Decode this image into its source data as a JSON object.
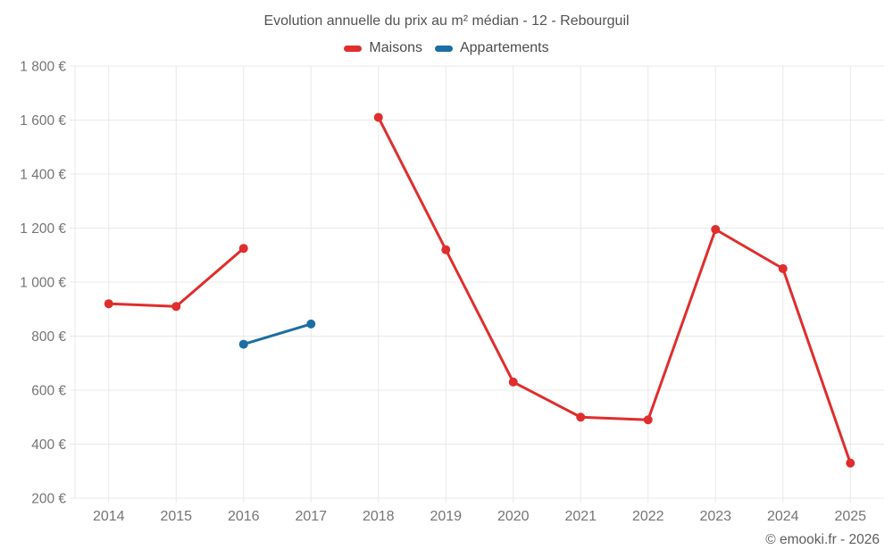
{
  "footer": {
    "copyright": "© emooki.fr - 2026"
  },
  "chart_data": {
    "type": "line",
    "title": "Evolution annuelle du prix au m² médian - 12 - Rebourguil",
    "categories": [
      "2014",
      "2015",
      "2016",
      "2017",
      "2018",
      "2019",
      "2020",
      "2021",
      "2022",
      "2023",
      "2024",
      "2025"
    ],
    "series": [
      {
        "name": "Maisons",
        "color": "#e02d2d",
        "values": [
          920,
          910,
          1125,
          null,
          1610,
          1120,
          630,
          500,
          490,
          1195,
          1050,
          330
        ]
      },
      {
        "name": "Appartements",
        "color": "#1c6ea4",
        "values": [
          null,
          null,
          770,
          845,
          null,
          null,
          null,
          null,
          null,
          null,
          null,
          null
        ]
      }
    ],
    "ylabel": "",
    "xlabel": "",
    "ylim": [
      200,
      1800
    ],
    "ytick_values": [
      200,
      400,
      600,
      800,
      1000,
      1200,
      1400,
      1600,
      1800
    ],
    "ytick_labels": [
      "200 €",
      "400 €",
      "600 €",
      "800 €",
      "1 000 €",
      "1 200 €",
      "1 400 €",
      "1 600 €",
      "1 800 €"
    ],
    "grid": true,
    "grid_color": "#e8e8e8",
    "tick_color": "#757575",
    "legend_position": "top",
    "marker_radius": 5,
    "line_width": 3
  }
}
